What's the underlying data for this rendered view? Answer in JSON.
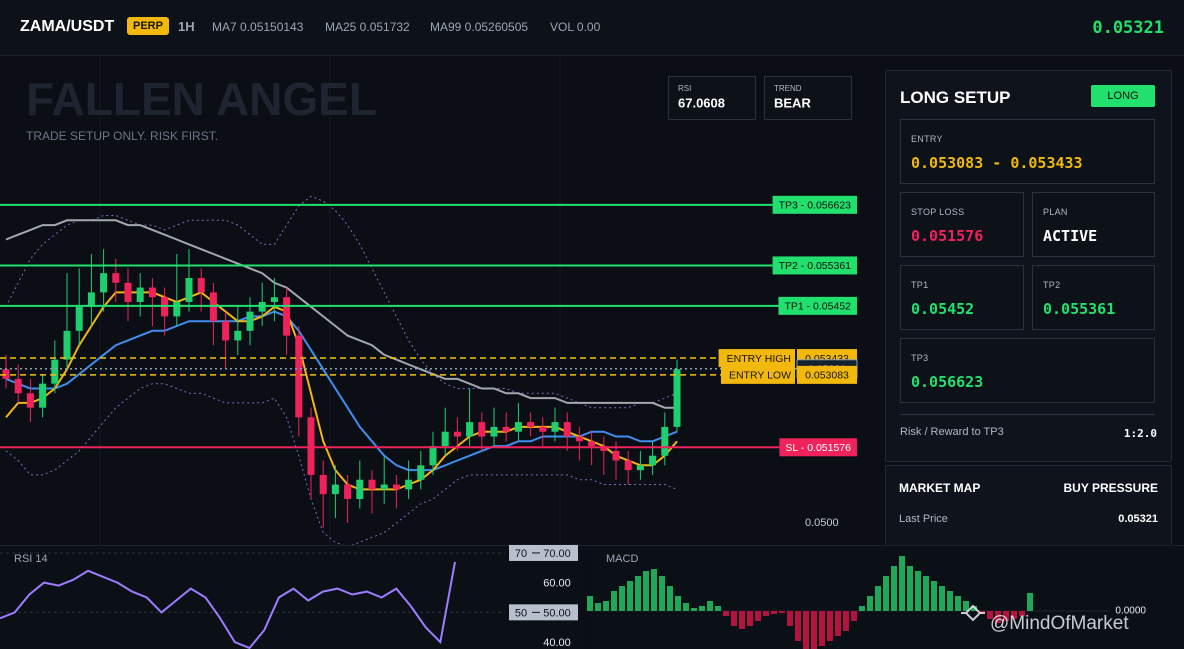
{
  "header": {
    "symbol": "ZAMA/USDT",
    "badge": "PERP",
    "timeframe": "1H",
    "indicators": [
      "MA7 0.05150143",
      "MA25 0.051732",
      "MA99 0.05260505",
      "VOL 0.00"
    ],
    "price": 0.05321
  },
  "chart_data": [
    {
      "type": "candlestick",
      "title": "FALLEN ANGEL",
      "subtitle": "TRADE SETUP ONLY. RISK FIRST.",
      "stats": [
        {
          "label": "RSI",
          "value": 67.0608
        },
        {
          "label": "TREND",
          "value": "BEAR"
        }
      ],
      "ylim": [
        0.0495,
        0.0597
      ],
      "yticks": [
        {
          "value": 0.05,
          "label": "0.0500"
        }
      ],
      "up_color": "#1fcf6e",
      "down_color": "#f0225c",
      "candles": [
        [
          0.0532,
          0.0535,
          0.0528,
          0.053
        ],
        [
          0.053,
          0.0533,
          0.0525,
          0.0527
        ],
        [
          0.0527,
          0.053,
          0.0521,
          0.0524
        ],
        [
          0.0524,
          0.0531,
          0.0522,
          0.0529
        ],
        [
          0.0529,
          0.0538,
          0.0527,
          0.0534
        ],
        [
          0.0534,
          0.0552,
          0.0532,
          0.054
        ],
        [
          0.054,
          0.0553,
          0.0537,
          0.0545
        ],
        [
          0.0545,
          0.0556,
          0.0541,
          0.0548
        ],
        [
          0.0548,
          0.0557,
          0.0544,
          0.0552
        ],
        [
          0.0552,
          0.0555,
          0.0546,
          0.055
        ],
        [
          0.055,
          0.0553,
          0.0542,
          0.0546
        ],
        [
          0.0546,
          0.0552,
          0.0543,
          0.0549
        ],
        [
          0.0549,
          0.0551,
          0.0541,
          0.0547
        ],
        [
          0.0547,
          0.0549,
          0.0539,
          0.0543
        ],
        [
          0.0543,
          0.0556,
          0.0541,
          0.0546
        ],
        [
          0.0546,
          0.0557,
          0.0544,
          0.0551
        ],
        [
          0.0551,
          0.0553,
          0.0544,
          0.0548
        ],
        [
          0.0548,
          0.055,
          0.0537,
          0.0542
        ],
        [
          0.0542,
          0.0544,
          0.0532,
          0.0538
        ],
        [
          0.0538,
          0.0545,
          0.0535,
          0.054
        ],
        [
          0.054,
          0.0547,
          0.0537,
          0.0544
        ],
        [
          0.0544,
          0.055,
          0.0541,
          0.0546
        ],
        [
          0.0546,
          0.0551,
          0.0542,
          0.0547
        ],
        [
          0.0547,
          0.0549,
          0.0535,
          0.0539
        ],
        [
          0.0539,
          0.0541,
          0.0518,
          0.0522
        ],
        [
          0.0522,
          0.0524,
          0.0505,
          0.051
        ],
        [
          0.051,
          0.0513,
          0.0499,
          0.0506
        ],
        [
          0.0506,
          0.0512,
          0.0501,
          0.0508
        ],
        [
          0.0508,
          0.051,
          0.05,
          0.0505
        ],
        [
          0.0505,
          0.0513,
          0.0503,
          0.0509
        ],
        [
          0.0509,
          0.0511,
          0.0502,
          0.0507
        ],
        [
          0.0507,
          0.0514,
          0.0504,
          0.0508
        ],
        [
          0.0508,
          0.051,
          0.0503,
          0.0507
        ],
        [
          0.0507,
          0.0513,
          0.0505,
          0.0509
        ],
        [
          0.0509,
          0.0515,
          0.0507,
          0.0512
        ],
        [
          0.0512,
          0.0519,
          0.051,
          0.0516
        ],
        [
          0.0516,
          0.0524,
          0.0514,
          0.0519
        ],
        [
          0.0519,
          0.0522,
          0.0515,
          0.0518
        ],
        [
          0.0518,
          0.0528,
          0.0516,
          0.0521
        ],
        [
          0.0521,
          0.0523,
          0.0515,
          0.0518
        ],
        [
          0.0518,
          0.0524,
          0.0516,
          0.052
        ],
        [
          0.052,
          0.0523,
          0.0517,
          0.0519
        ],
        [
          0.0519,
          0.0525,
          0.0517,
          0.0521
        ],
        [
          0.0521,
          0.0523,
          0.0518,
          0.052
        ],
        [
          0.052,
          0.0522,
          0.0516,
          0.0519
        ],
        [
          0.0519,
          0.0524,
          0.0517,
          0.0521
        ],
        [
          0.0521,
          0.0523,
          0.0515,
          0.0518
        ],
        [
          0.0518,
          0.052,
          0.0513,
          0.0517
        ],
        [
          0.0517,
          0.0519,
          0.0512,
          0.0516
        ],
        [
          0.0516,
          0.0518,
          0.051,
          0.0515
        ],
        [
          0.0515,
          0.0517,
          0.0509,
          0.0513
        ],
        [
          0.0513,
          0.0515,
          0.0508,
          0.0511
        ],
        [
          0.0511,
          0.0515,
          0.0509,
          0.0512
        ],
        [
          0.0512,
          0.0517,
          0.051,
          0.0514
        ],
        [
          0.0514,
          0.0523,
          0.0512,
          0.052
        ],
        [
          0.052,
          0.0534,
          0.0519,
          0.0532
        ]
      ],
      "series": [
        {
          "color": "#7d6bc9",
          "dash": "dot",
          "values": [
            0.0545,
            0.055,
            0.0555,
            0.0558,
            0.056,
            0.0562,
            0.0563,
            0.0563,
            0.0564,
            0.0564,
            0.0563,
            0.0562,
            0.0562,
            0.0561,
            0.0562,
            0.0563,
            0.0563,
            0.0563,
            0.0563,
            0.0562,
            0.056,
            0.0558,
            0.0558,
            0.0562,
            0.0566,
            0.0568,
            0.0567,
            0.0565,
            0.0562,
            0.0558,
            0.0553,
            0.0548,
            0.0543,
            0.0538,
            0.0534,
            0.0531,
            0.0529,
            0.0528,
            0.0528,
            0.0528,
            0.0528,
            0.0528,
            0.0527,
            0.0527,
            0.0527,
            0.0527,
            0.0526,
            0.0525,
            0.0524,
            0.0524,
            0.0524,
            0.0524,
            0.0525,
            0.0525,
            0.0526,
            0.0527
          ]
        },
        {
          "color": "#7d6bc9",
          "dash": "dot",
          "values": [
            0.0515,
            0.0513,
            0.051,
            0.051,
            0.0511,
            0.0513,
            0.0515,
            0.0518,
            0.0521,
            0.0524,
            0.0526,
            0.0528,
            0.0529,
            0.0529,
            0.0528,
            0.0527,
            0.0527,
            0.0526,
            0.0525,
            0.0525,
            0.0525,
            0.0525,
            0.0526,
            0.0522,
            0.0514,
            0.0505,
            0.0498,
            0.0496,
            0.0495,
            0.0496,
            0.0497,
            0.0498,
            0.05,
            0.0502,
            0.0504,
            0.0505,
            0.0507,
            0.0509,
            0.051,
            0.051,
            0.051,
            0.051,
            0.051,
            0.051,
            0.051,
            0.051,
            0.051,
            0.0509,
            0.0509,
            0.0508,
            0.0508,
            0.0508,
            0.0508,
            0.0508,
            0.0508,
            0.0507
          ]
        },
        {
          "color": "#a3a8b0",
          "dash": "solid",
          "values": [
            0.0559,
            0.056,
            0.0561,
            0.0562,
            0.0562,
            0.0563,
            0.0563,
            0.0563,
            0.0563,
            0.0563,
            0.0562,
            0.0562,
            0.0561,
            0.056,
            0.0559,
            0.0558,
            0.0557,
            0.0556,
            0.0555,
            0.0554,
            0.0553,
            0.0552,
            0.055,
            0.0549,
            0.0547,
            0.0545,
            0.0543,
            0.0541,
            0.0539,
            0.0538,
            0.0537,
            0.0535,
            0.0534,
            0.0533,
            0.0532,
            0.0531,
            0.053,
            0.053,
            0.0529,
            0.0528,
            0.0528,
            0.0527,
            0.0527,
            0.0526,
            0.0526,
            0.0526,
            0.0525,
            0.0525,
            0.0525,
            0.0525,
            0.0525,
            0.0525,
            0.0525,
            0.0525,
            0.0524,
            0.0524
          ]
        },
        {
          "color": "#3f8ef0",
          "dash": "solid",
          "values": [
            0.053,
            0.0529,
            0.0528,
            0.0528,
            0.0528,
            0.0529,
            0.0531,
            0.0533,
            0.0535,
            0.0537,
            0.0538,
            0.0539,
            0.054,
            0.054,
            0.0541,
            0.0542,
            0.0542,
            0.0542,
            0.0542,
            0.0542,
            0.0543,
            0.0543,
            0.0544,
            0.0543,
            0.054,
            0.0536,
            0.0532,
            0.0528,
            0.0524,
            0.052,
            0.0517,
            0.0514,
            0.0512,
            0.0511,
            0.0511,
            0.0511,
            0.0512,
            0.0513,
            0.0514,
            0.0515,
            0.0516,
            0.0516,
            0.0517,
            0.0517,
            0.0518,
            0.0518,
            0.0518,
            0.0518,
            0.0519,
            0.0519,
            0.0518,
            0.0518,
            0.0517,
            0.0517,
            0.0518,
            0.0519
          ]
        },
        {
          "color": "#f2b516",
          "dash": "solid",
          "values": [
            0.0522,
            0.0525,
            0.0525,
            0.0526,
            0.0528,
            0.0532,
            0.0537,
            0.0541,
            0.0545,
            0.0548,
            0.0548,
            0.0548,
            0.0548,
            0.0547,
            0.0546,
            0.0547,
            0.0548,
            0.0546,
            0.0544,
            0.0542,
            0.0542,
            0.0543,
            0.0545,
            0.0544,
            0.0537,
            0.0527,
            0.0517,
            0.0511,
            0.0508,
            0.0507,
            0.0507,
            0.0507,
            0.0507,
            0.0508,
            0.0509,
            0.0511,
            0.0514,
            0.0516,
            0.0518,
            0.0519,
            0.0519,
            0.0519,
            0.052,
            0.052,
            0.052,
            0.052,
            0.0519,
            0.0518,
            0.0517,
            0.0516,
            0.0514,
            0.0513,
            0.0512,
            0.0512,
            0.0514,
            0.0517
          ]
        }
      ],
      "levels": [
        {
          "label": "TP3 - 0.056623",
          "value": 0.056623,
          "color": "#22e06e",
          "box_color": "#22e06e",
          "text_color": "#06120a",
          "dash": "solid",
          "show_value": false
        },
        {
          "label": "TP2 - 0.055361",
          "value": 0.055361,
          "color": "#22e06e",
          "box_color": "#22e06e",
          "text_color": "#06120a",
          "dash": "solid",
          "show_value": false
        },
        {
          "label": "TP1 - 0.05452",
          "value": 0.05452,
          "color": "#22e06e",
          "box_color": "#22e06e",
          "text_color": "#06120a",
          "dash": "solid",
          "show_value": false
        },
        {
          "label": "ENTRY HIGH",
          "value": 0.053433,
          "color": "#f2c40f",
          "box_color": "#f2b90c",
          "text_color": "#1a1300",
          "dash": "dash",
          "show_value": true
        },
        {
          "value": 0.05321,
          "color": "#8aa0b4",
          "box_color": "#13222b",
          "text_color": "#cfe3ee",
          "dash": "dot",
          "show_value": true
        },
        {
          "label": "ENTRY LOW",
          "value": 0.053083,
          "color": "#f2c40f",
          "box_color": "#f2b90c",
          "text_color": "#1a1300",
          "dash": "dash",
          "show_value": true
        },
        {
          "label": "SL - 0.051576",
          "value": 0.051576,
          "color": "#f0225c",
          "box_color": "#f0225c",
          "text_color": "#ffffff",
          "dash": "solid",
          "show_value": false
        }
      ]
    },
    {
      "type": "line",
      "title": "RSI 14",
      "ylim": [
        38,
        72
      ],
      "yticks": [
        {
          "value": 70,
          "label": "70.00"
        },
        {
          "value": 60,
          "label": "60.00"
        },
        {
          "value": 50,
          "label": "50.00"
        },
        {
          "value": 40,
          "label": "40.00"
        }
      ],
      "levels": [
        70,
        50
      ],
      "color": "#9c7dff",
      "values": [
        48,
        50,
        56,
        60,
        59,
        61,
        64,
        62,
        60,
        57,
        55,
        50,
        54,
        58,
        55,
        48,
        40,
        38,
        44,
        55,
        58,
        54,
        57,
        58,
        56,
        57,
        55,
        58,
        52,
        45,
        40,
        67
      ]
    },
    {
      "type": "bar",
      "title": "MACD",
      "ylim": [
        -3.8e-05,
        6.6e-05
      ],
      "yticks": [
        {
          "value": 0,
          "label": "0.0000"
        }
      ],
      "up_color": "#1fa85a",
      "down_color": "#b3143f",
      "values": [
        1.5e-05,
        8e-06,
        1e-05,
        2e-05,
        2.5e-05,
        3e-05,
        3.5e-05,
        4e-05,
        4.2e-05,
        3.5e-05,
        2.5e-05,
        1.5e-05,
        8e-06,
        3e-06,
        5e-06,
        1e-05,
        5e-06,
        -5e-06,
        -1.5e-05,
        -1.8e-05,
        -1.5e-05,
        -1e-05,
        -5e-06,
        -3e-06,
        -2e-06,
        -1.5e-05,
        -3e-05,
        -3.8e-05,
        -3.8e-05,
        -3.5e-05,
        -3e-05,
        -2.5e-05,
        -2e-05,
        -1e-05,
        5e-06,
        1.5e-05,
        2.5e-05,
        3.5e-05,
        4.5e-05,
        5.5e-05,
        4.5e-05,
        4e-05,
        3.5e-05,
        3e-05,
        2.5e-05,
        2e-05,
        1.5e-05,
        1e-05,
        5e-06,
        -3e-06,
        -8e-06,
        -1.2e-05,
        -1e-05,
        -8e-06,
        -5e-06,
        1.8e-05
      ]
    }
  ],
  "panel": {
    "title": "LONG SETUP",
    "badge": "LONG",
    "entry": {
      "label": "ENTRY",
      "value": "0.053083 - 0.053433"
    },
    "cells": [
      {
        "label": "STOP LOSS",
        "value": 0.051576
      },
      {
        "label": "PLAN",
        "value": "ACTIVE"
      },
      {
        "label": "TP1",
        "value": 0.05452
      },
      {
        "label": "TP2",
        "value": 0.055361
      },
      {
        "label": "TP3",
        "value": 0.056623
      }
    ],
    "risk": {
      "label": "Risk / Reward to TP3",
      "value": "1:2.0"
    }
  },
  "market_map": {
    "title": "MARKET MAP",
    "status": "BUY PRESSURE",
    "rows": [
      {
        "label": "Last Price",
        "value": 0.05321
      }
    ]
  },
  "watermark": "@MindOfMarket"
}
